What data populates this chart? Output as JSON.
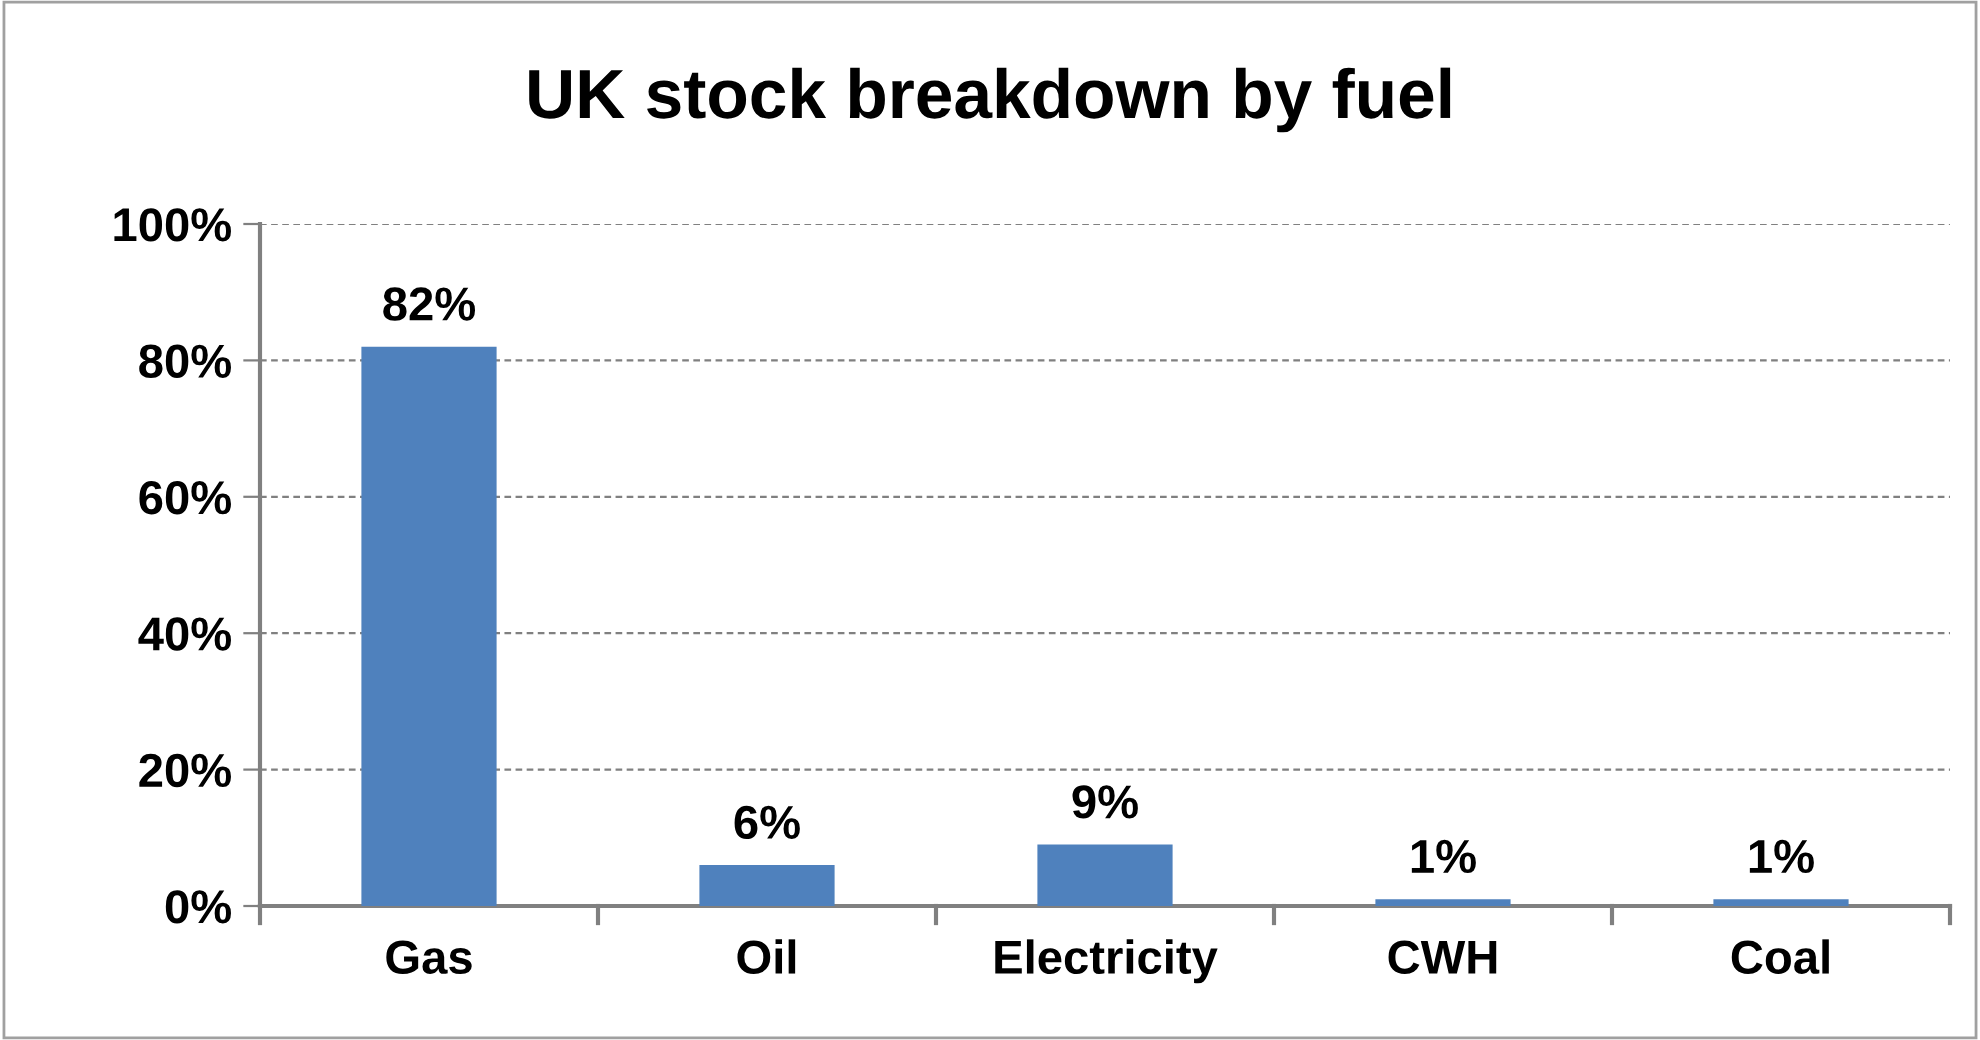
{
  "chart_data": {
    "type": "bar",
    "title": "UK stock breakdown by fuel",
    "categories": [
      "Gas",
      "Oil",
      "Electricity",
      "CWH",
      "Coal"
    ],
    "values": [
      82,
      6,
      9,
      1,
      1
    ],
    "value_labels": [
      "82%",
      "6%",
      "9%",
      "1%",
      "1%"
    ],
    "color": "#4f81bd",
    "ylim": [
      0,
      100
    ],
    "yticks": [
      {
        "value": 0,
        "label": "0%"
      },
      {
        "value": 20,
        "label": "20%"
      },
      {
        "value": 40,
        "label": "40%"
      },
      {
        "value": 60,
        "label": "60%"
      },
      {
        "value": 80,
        "label": "80%"
      },
      {
        "value": 100,
        "label": "100%"
      }
    ],
    "grid": "y"
  }
}
